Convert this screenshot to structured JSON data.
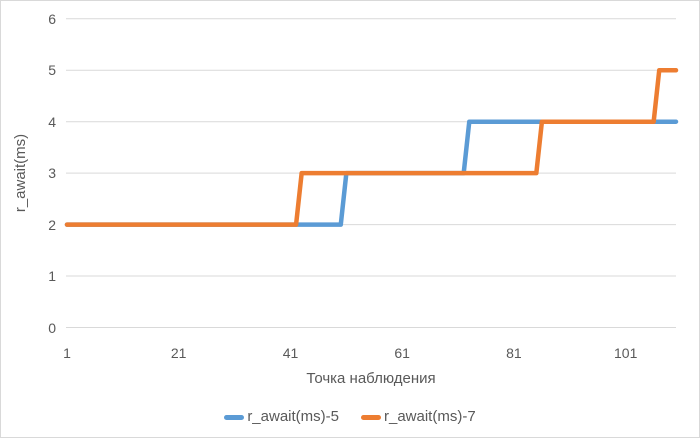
{
  "theme": {
    "background": "#FFFFFF",
    "border_color": "#D9D9D9",
    "grid_color": "#D9D9D9",
    "text_color": "#595959",
    "line_width": 4.5
  },
  "chart_data": {
    "type": "line",
    "subtype": "step",
    "title": "",
    "xlabel": "Точка наблюдения",
    "ylabel": "r_await(ms)",
    "x_range": [
      1,
      110
    ],
    "ylim": [
      0,
      6
    ],
    "x_tick_values": [
      1,
      21,
      41,
      61,
      81,
      101
    ],
    "y_tick_values": [
      0,
      1,
      2,
      3,
      4,
      5,
      6
    ],
    "grid": true,
    "legend_position": "bottom",
    "legend": [
      "r_await(ms)-5",
      "r_await(ms)-7"
    ],
    "series": [
      {
        "name": "r_await(ms)-5",
        "color": "#5B9BD5",
        "step_segments": [
          {
            "from": 1,
            "to": 50,
            "value": 2
          },
          {
            "from": 51,
            "to": 72,
            "value": 3
          },
          {
            "from": 73,
            "to": 110,
            "value": 4
          }
        ]
      },
      {
        "name": "r_await(ms)-7",
        "color": "#ED7D31",
        "step_segments": [
          {
            "from": 1,
            "to": 42,
            "value": 2
          },
          {
            "from": 43,
            "to": 85,
            "value": 3
          },
          {
            "from": 86,
            "to": 106,
            "value": 4
          },
          {
            "from": 107,
            "to": 110,
            "value": 5
          }
        ]
      }
    ]
  }
}
